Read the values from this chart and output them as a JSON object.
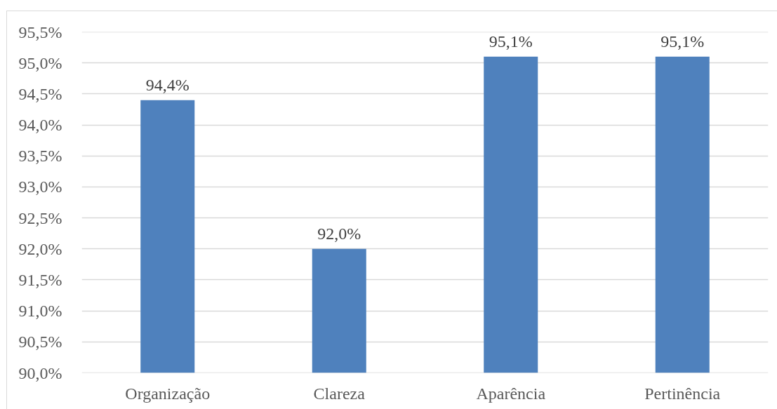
{
  "chart_data": {
    "type": "bar",
    "categories": [
      "Organização",
      "Clareza",
      "Aparência",
      "Pertinência"
    ],
    "values": [
      94.4,
      92.0,
      95.1,
      95.1
    ],
    "color": "#4f81bd",
    "value_labels": [
      "94,4%",
      "92,0%",
      "95,1%",
      "95,1%"
    ],
    "ylim": [
      90,
      95.5
    ],
    "yticks": [
      {
        "value": 90,
        "label": "90,0%"
      },
      {
        "value": 90.5,
        "label": "90,5%"
      },
      {
        "value": 91,
        "label": "91,0%"
      },
      {
        "value": 91.5,
        "label": "91,5%"
      },
      {
        "value": 92,
        "label": "92,0%"
      },
      {
        "value": 92.5,
        "label": "92,5%"
      },
      {
        "value": 93,
        "label": "93,0%"
      },
      {
        "value": 93.5,
        "label": "93,5%"
      },
      {
        "value": 94,
        "label": "94,0%"
      },
      {
        "value": 94.5,
        "label": "94,5%"
      },
      {
        "value": 95,
        "label": "95,0%"
      },
      {
        "value": 95.5,
        "label": "95,5%"
      }
    ],
    "grid": "y"
  }
}
